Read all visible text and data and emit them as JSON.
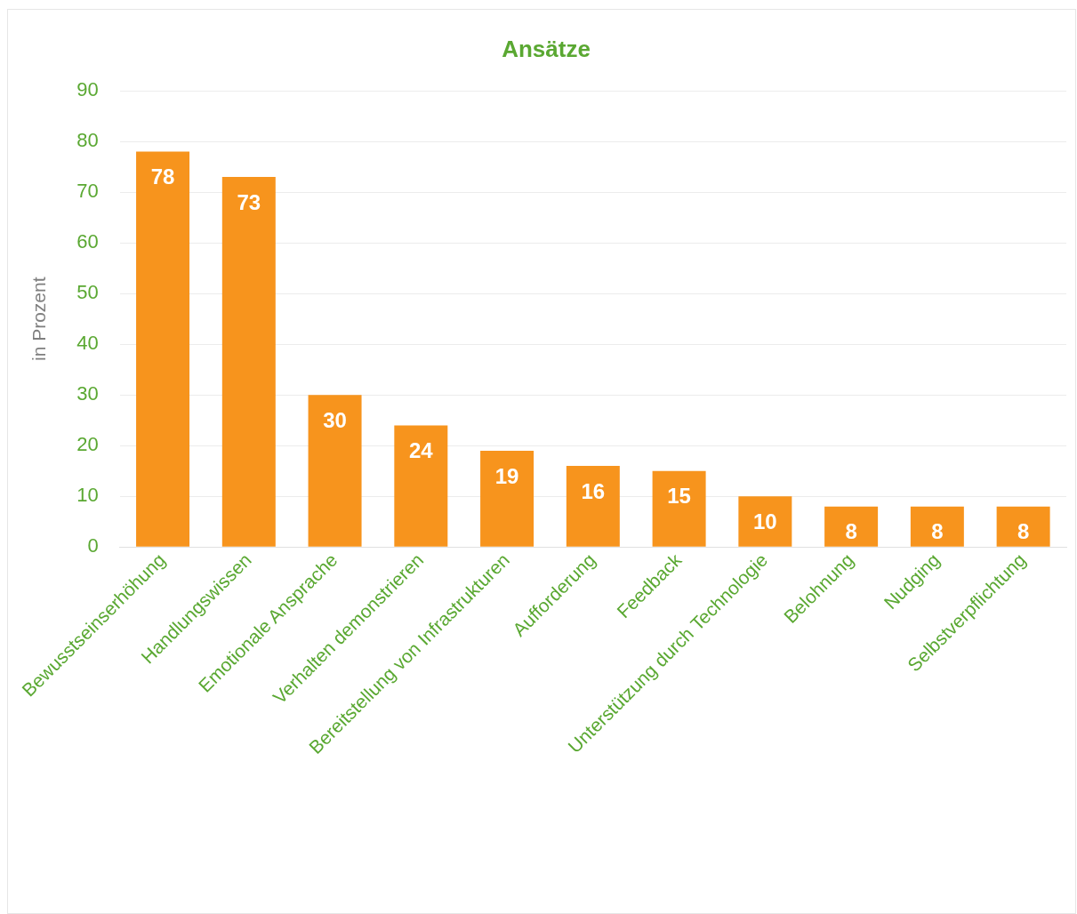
{
  "chart_data": {
    "type": "bar",
    "title": "Ansätze",
    "ylabel": "in Prozent",
    "categories": [
      "Bewusstseinserhöhung",
      "Handlungswissen",
      "Emotionale Ansprache",
      "Verhalten demonstrieren",
      "Bereitstellung von Infrastrukturen",
      "Aufforderung",
      "Feedback",
      "Unterstützung durch Technologie",
      "Belohnung",
      "Nudging",
      "Selbstverpflichtung"
    ],
    "values": [
      78,
      73,
      30,
      24,
      19,
      16,
      15,
      10,
      8,
      8,
      8
    ],
    "color": "#f7941d",
    "ylim": [
      0,
      90
    ],
    "yticks": [
      0,
      10,
      20,
      30,
      40,
      50,
      60,
      70,
      80,
      90
    ],
    "grid": "y",
    "data_labels": true,
    "legend": false
  }
}
